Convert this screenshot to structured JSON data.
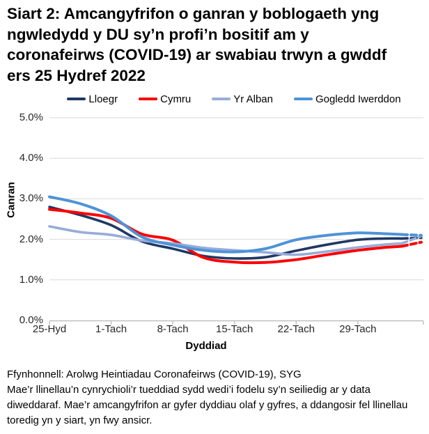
{
  "title_lines": [
    "Siart 2: Amcangyfrifon o ganran y boblogaeth yng",
    "ngwledydd y DU sy’n profi’n bositif am y",
    "coronafeirws (COVID-19) ar swabiau trwyn a gwddf",
    "ers 25 Hydref 2022"
  ],
  "legend": [
    {
      "label": "Lloegr",
      "color": "#1F3864"
    },
    {
      "label": "Cymru",
      "color": "#FC0000"
    },
    {
      "label": "Yr Alban",
      "color": "#98ACD9"
    },
    {
      "label": "Gogledd Iwerddon",
      "color": "#4D93D9"
    }
  ],
  "chart_data": {
    "type": "line",
    "title": "Siart 2: Amcangyfrifon o ganran y boblogaeth yng ngwledydd y DU sy’n profi’n bositif am y coronafeirws (COVID-19) ar swabiau trwyn a gwddf ers 25 Hydref 2022",
    "xlabel": "Dyddiad",
    "ylabel": "Canran",
    "x_tick_labels": [
      "25-Hyd",
      "1-Tach",
      "8-Tach",
      "15-Tach",
      "22-Tach",
      "29-Tach"
    ],
    "x_tick_days": [
      0,
      7,
      14,
      21,
      28,
      35
    ],
    "xlim": [
      0,
      42.2
    ],
    "ylim": [
      0,
      5
    ],
    "y_ticks": [
      0,
      1,
      2,
      3,
      4,
      5
    ],
    "y_tick_labels": [
      "0.0%",
      "1.0%",
      "2.0%",
      "3.0%",
      "4.0%",
      "5.0%"
    ],
    "grid": true,
    "legend_position": "top",
    "grid_color": "#D9D9D9",
    "axis_color": "#BFBFBF",
    "series": [
      {
        "name": "Lloegr",
        "color": "#1F3864",
        "width": 3.6,
        "solid": [
          [
            0,
            2.8
          ],
          [
            3.5,
            2.6
          ],
          [
            7,
            2.35
          ],
          [
            10.5,
            1.95
          ],
          [
            14,
            1.77
          ],
          [
            17.5,
            1.59
          ],
          [
            21,
            1.53
          ],
          [
            24.5,
            1.56
          ],
          [
            28,
            1.72
          ],
          [
            31.5,
            1.87
          ],
          [
            35,
            1.99
          ],
          [
            38,
            2.02
          ],
          [
            40,
            2.02
          ]
        ],
        "dashed": [
          [
            40,
            2.02
          ],
          [
            42.2,
            2.04
          ]
        ]
      },
      {
        "name": "Cymru",
        "color": "#FC0000",
        "width": 4,
        "solid": [
          [
            0,
            2.74
          ],
          [
            3.5,
            2.65
          ],
          [
            7,
            2.52
          ],
          [
            10.5,
            2.13
          ],
          [
            14,
            1.98
          ],
          [
            17.5,
            1.55
          ],
          [
            21,
            1.44
          ],
          [
            24.5,
            1.43
          ],
          [
            28,
            1.5
          ],
          [
            31.5,
            1.62
          ],
          [
            35,
            1.73
          ],
          [
            38,
            1.8
          ],
          [
            40,
            1.83
          ]
        ],
        "dashed": [
          [
            40,
            1.83
          ],
          [
            42.2,
            1.93
          ]
        ]
      },
      {
        "name": "Yr Alban",
        "color": "#98ACD9",
        "width": 3.6,
        "solid": [
          [
            0,
            2.32
          ],
          [
            3.5,
            2.18
          ],
          [
            7,
            2.11
          ],
          [
            10.5,
            1.97
          ],
          [
            14,
            1.9
          ],
          [
            17.5,
            1.79
          ],
          [
            21,
            1.73
          ],
          [
            24.5,
            1.68
          ],
          [
            28,
            1.62
          ],
          [
            31.5,
            1.7
          ],
          [
            35,
            1.8
          ],
          [
            38,
            1.87
          ],
          [
            40,
            1.9
          ]
        ],
        "dashed": [
          [
            40,
            1.9
          ],
          [
            42.2,
            2.08
          ]
        ]
      },
      {
        "name": "Gogledd Iwerddon",
        "color": "#4D93D9",
        "width": 4,
        "solid": [
          [
            0,
            3.05
          ],
          [
            3.5,
            2.88
          ],
          [
            7,
            2.58
          ],
          [
            10.5,
            2.06
          ],
          [
            14,
            1.86
          ],
          [
            17.5,
            1.73
          ],
          [
            21,
            1.69
          ],
          [
            24.5,
            1.77
          ],
          [
            28,
            1.99
          ],
          [
            31.5,
            2.1
          ],
          [
            35,
            2.16
          ],
          [
            38,
            2.14
          ],
          [
            40,
            2.12
          ]
        ],
        "dashed": [
          [
            40,
            2.12
          ],
          [
            42.2,
            2.1
          ]
        ]
      }
    ]
  },
  "footer": {
    "source_line": "Ffynhonnell: Arolwg Heintiadau Coronafeirws (COVID-19), SYG",
    "note_lines": [
      "Mae’r llinellau’n cynrychioli’r tueddiad sydd wedi’i fodelu sy’n seiliedig ar y data",
      "diweddaraf. Mae’r amcangyfrifon ar gyfer dyddiau olaf y gyfres, a ddangosir fel llinellau",
      "toredig yn y siart, yn fwy ansicr."
    ]
  }
}
